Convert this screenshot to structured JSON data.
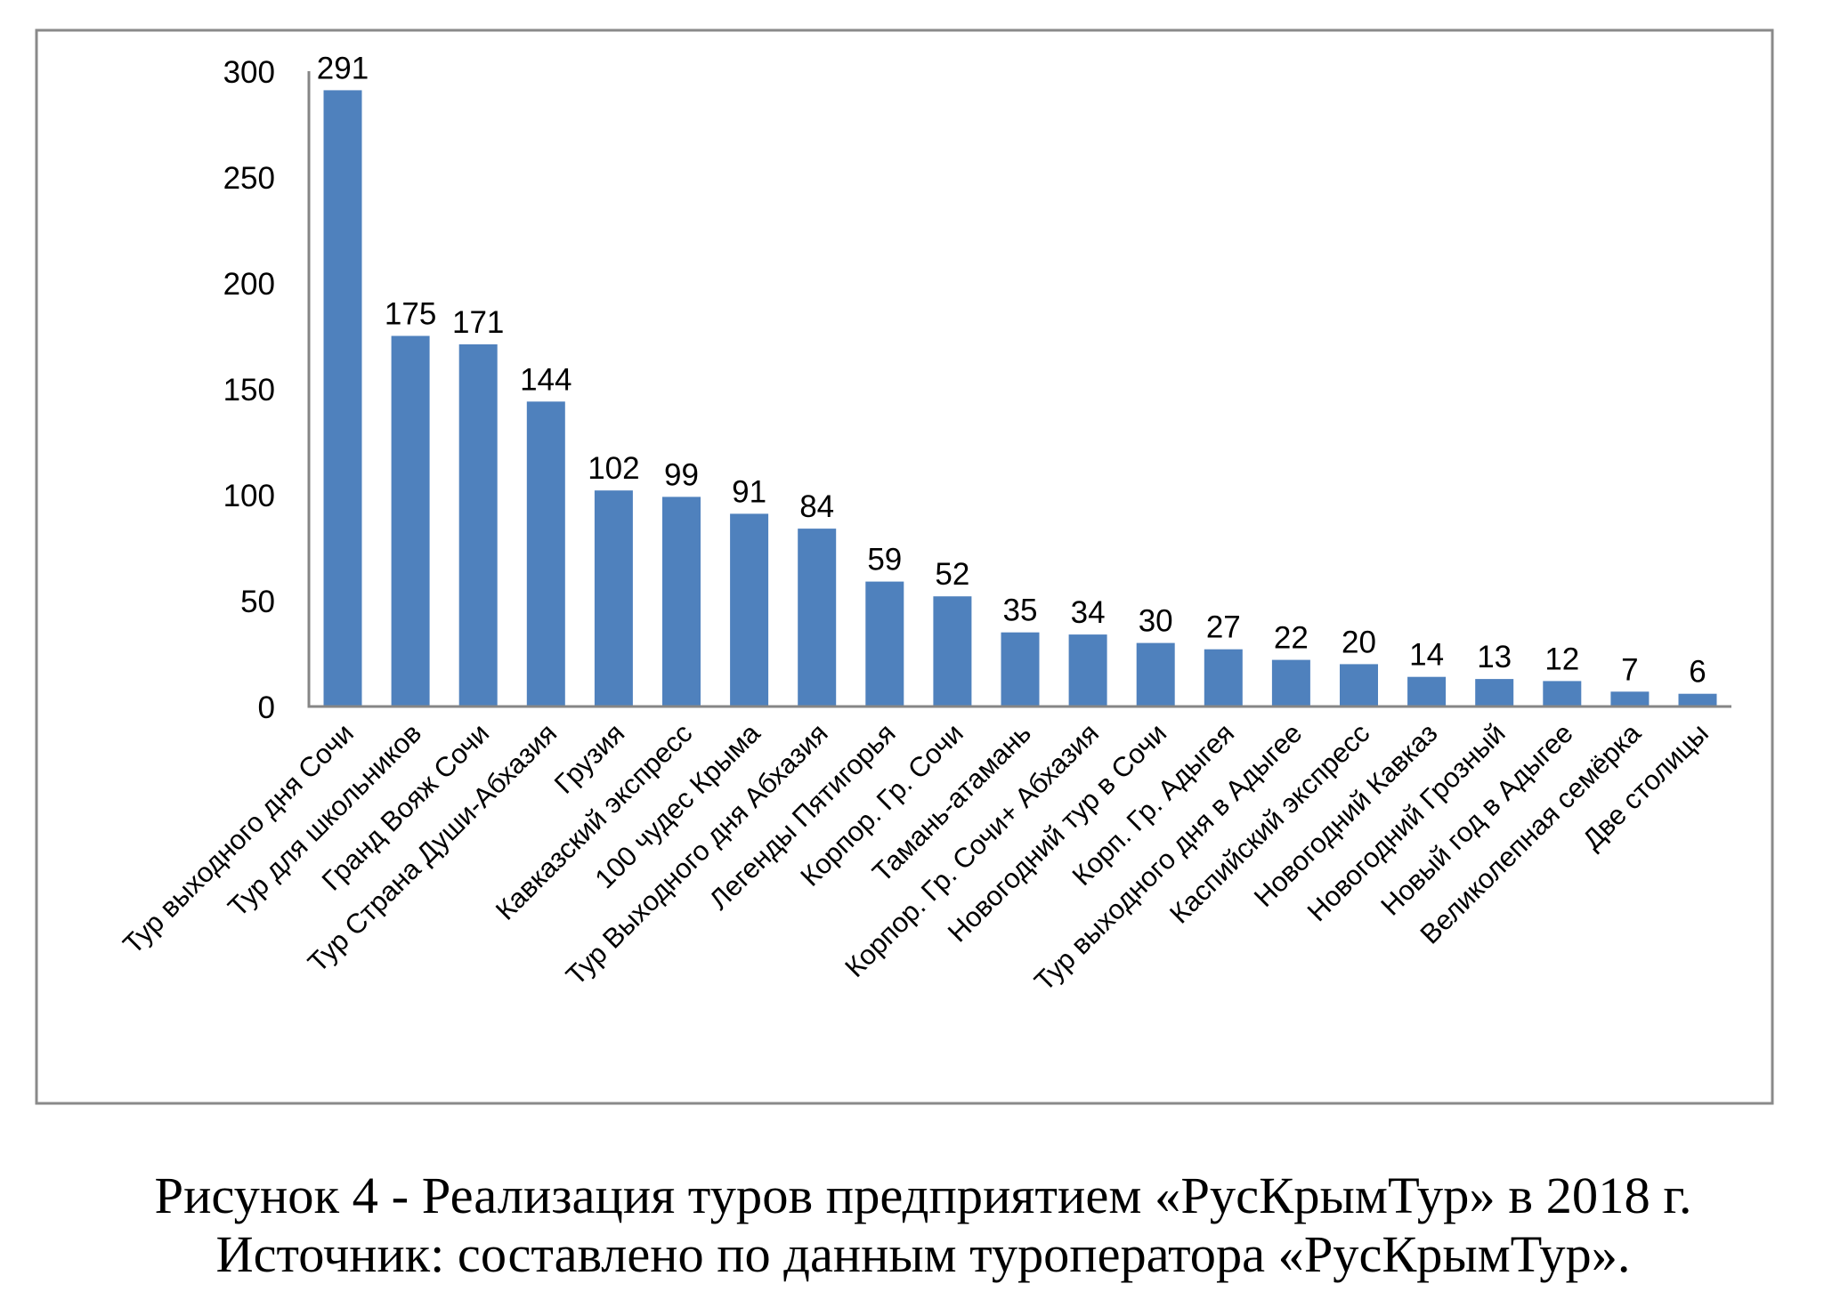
{
  "chart_data": {
    "type": "bar",
    "title": "",
    "xlabel": "",
    "ylabel": "",
    "ylim": [
      0,
      300
    ],
    "yticks": [
      0,
      50,
      100,
      150,
      200,
      250,
      300
    ],
    "grid": false,
    "legend": "none",
    "bar_color": "#4f81bd",
    "axis_color": "#868686",
    "frame_color": "#8a8a8a",
    "categories": [
      "Тур выходного дня Сочи",
      "Тур для школьников",
      "Гранд Вояж Сочи",
      "Тур Страна Души-Абхазия",
      "Грузия",
      "Кавказский экспресс",
      "100 чудес Крыма",
      "Тур Выходного дня Абхазия",
      "Легенды Пятигорья",
      "Корпор. Гр.  Сочи",
      "Тамань-атамань",
      "Корпор. Гр.  Сочи+ Абхазия",
      "Новогодний тур в Сочи",
      "Корп. Гр. Адыгея",
      "Тур выходного дня в Адыгее",
      "Каспийский экспресс",
      "Новогодний Кавказ",
      "Новогодний Грозный",
      "Новый год в Адыгее",
      "Великолепная семёрка",
      "Две столицы"
    ],
    "values": [
      291,
      175,
      171,
      144,
      102,
      99,
      91,
      84,
      59,
      52,
      35,
      34,
      30,
      27,
      22,
      20,
      14,
      13,
      12,
      7,
      6
    ],
    "data_labels": [
      "291",
      "175",
      "171",
      "144",
      "102",
      "99",
      "91",
      "84",
      "59",
      "52",
      "35",
      "34",
      "30",
      "27",
      "22",
      "20",
      "14",
      "13",
      "12",
      "7",
      "6"
    ],
    "ytick_labels": [
      "0",
      "50",
      "100",
      "150",
      "200",
      "250",
      "300"
    ]
  },
  "caption": {
    "line1": "Рисунок 4 - Реализация туров предприятием «РусКрымТур» в 2018 г.",
    "line2": "Источник: составлено по данным туроператора «РусКрымТур»."
  }
}
